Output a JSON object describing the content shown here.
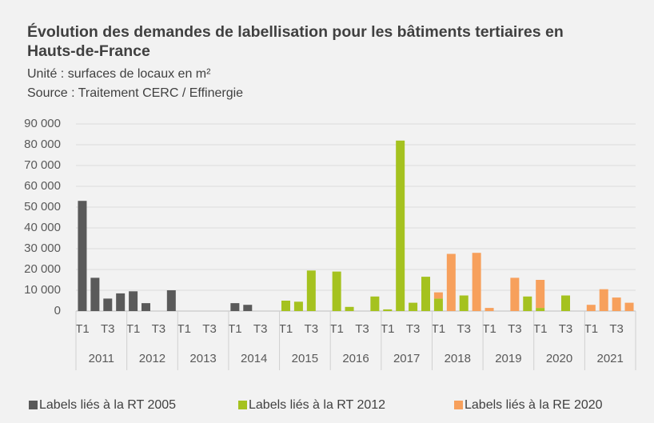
{
  "chart_data": {
    "type": "stacked_bar",
    "title": "Évolution des demandes de labellisation pour les bâtiments tertiaires en Hauts-de-France",
    "subtitle": "Unité : surfaces de locaux en m²",
    "source": "Source :  Traitement CERC / Effinergie",
    "categories": [
      "T1",
      null,
      "T3",
      null,
      "T1",
      null,
      "T3",
      null,
      "T1",
      null,
      "T3",
      null,
      "T1",
      null,
      "T3",
      null,
      "T1",
      null,
      "T3",
      null,
      "T1",
      null,
      "T3",
      null,
      "T1",
      null,
      "T3",
      null,
      "T1",
      null,
      "T3",
      null,
      "T1",
      null,
      "T3",
      null,
      "T1",
      null,
      "T3",
      null,
      "T1",
      null,
      "T3",
      null
    ],
    "groups": [
      "2011",
      "2012",
      "2013",
      "2014",
      "2015",
      "2016",
      "2017",
      "2018",
      "2019",
      "2020",
      "2021"
    ],
    "series": [
      {
        "name": "Labels liés à la RT 2005",
        "color": "#5a5a5a",
        "values": [
          53000,
          16000,
          6000,
          8500,
          9500,
          3800,
          0,
          10000,
          0,
          0,
          0,
          0,
          3800,
          3000,
          0,
          0,
          0,
          0,
          0,
          0,
          0,
          0,
          0,
          0,
          0,
          0,
          0,
          0,
          0,
          0,
          0,
          0,
          0,
          0,
          0,
          0,
          0,
          0,
          0,
          0,
          0,
          0,
          0,
          0
        ]
      },
      {
        "name": "Labels liés à la RT 2012",
        "color": "#a5c21f",
        "values": [
          0,
          0,
          0,
          0,
          0,
          0,
          0,
          0,
          0,
          0,
          0,
          0,
          0,
          0,
          0,
          0,
          5000,
          4500,
          19500,
          0,
          19000,
          2000,
          0,
          7000,
          800,
          82000,
          4000,
          16500,
          6000,
          0,
          7500,
          0,
          0,
          0,
          0,
          7000,
          1500,
          0,
          7500,
          0,
          0,
          0,
          0,
          0
        ]
      },
      {
        "name": "Labels liés à la RE 2020",
        "color": "#f7a05c",
        "values": [
          0,
          0,
          0,
          0,
          0,
          0,
          0,
          0,
          0,
          0,
          0,
          0,
          0,
          0,
          0,
          0,
          0,
          0,
          0,
          0,
          0,
          0,
          0,
          0,
          0,
          0,
          0,
          0,
          3000,
          27500,
          0,
          28000,
          1500,
          0,
          16000,
          0,
          13500,
          0,
          0,
          0,
          3000,
          10500,
          6500,
          4000
        ]
      }
    ],
    "ylim": [
      0,
      90000
    ],
    "yticks": [
      0,
      {
        "value": 10000,
        "label": "10 000"
      },
      {
        "value": 20000,
        "label": "20 000"
      },
      {
        "value": 30000,
        "label": "30 000"
      },
      {
        "value": 40000,
        "label": "40 000"
      },
      {
        "value": 50000,
        "label": "50 000"
      },
      {
        "value": 60000,
        "label": "60 000"
      },
      {
        "value": 70000,
        "label": "70 000"
      },
      {
        "value": 80000,
        "label": "80 000"
      },
      {
        "value": 90000,
        "label": "90 000"
      }
    ],
    "grid": true
  }
}
